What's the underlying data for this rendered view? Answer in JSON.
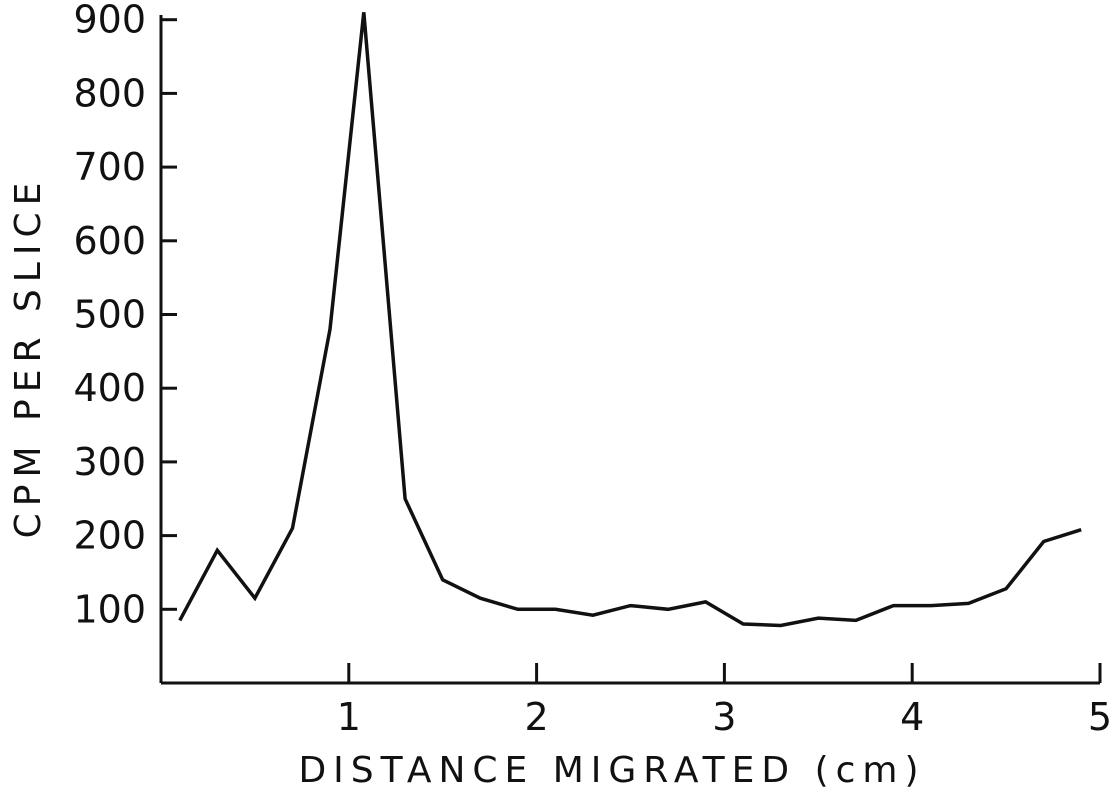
{
  "chart_data": {
    "type": "line",
    "title": "",
    "xlabel": "DISTANCE MIGRATED (cm)",
    "ylabel": "CPM PER SLICE",
    "xlim": [
      0,
      5
    ],
    "ylim": [
      0,
      900
    ],
    "grid": false,
    "x_ticks": [
      1,
      2,
      3,
      4,
      5
    ],
    "y_ticks": [
      100,
      200,
      300,
      400,
      500,
      600,
      700,
      800,
      900
    ],
    "series": [
      {
        "x": [
          0.1,
          0.3,
          0.5,
          0.7,
          0.9,
          1.08,
          1.3,
          1.5,
          1.7,
          1.9,
          2.1,
          2.3,
          2.5,
          2.7,
          2.9,
          3.1,
          3.3,
          3.5,
          3.7,
          3.9,
          4.1,
          4.3,
          4.5,
          4.7,
          4.9
        ],
        "y": [
          85,
          180,
          115,
          210,
          480,
          910,
          250,
          140,
          115,
          100,
          100,
          92,
          105,
          100,
          110,
          80,
          78,
          88,
          85,
          105,
          105,
          108,
          128,
          192,
          208
        ]
      }
    ]
  }
}
